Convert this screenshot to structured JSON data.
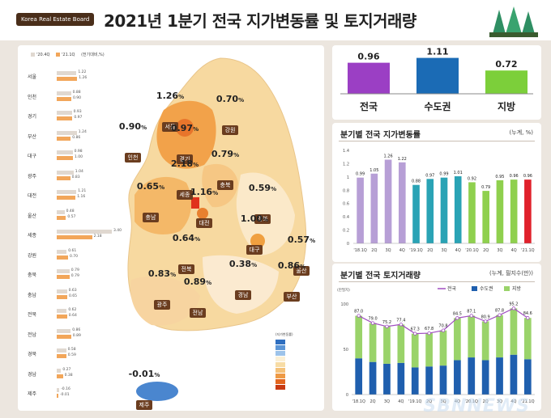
{
  "header": {
    "brand": "Korea Real Estate Board",
    "title": "2021년 1분기 전국 지가변동률 및 토지거래량"
  },
  "map": {
    "legend": [
      "'20.4Q",
      "'21.1Q",
      "(전기대비,%)"
    ],
    "side_bars": [
      {
        "label": "서울",
        "q4": 1.22,
        "q1": 1.26
      },
      {
        "label": "인천",
        "q4": 0.88,
        "q1": 0.9
      },
      {
        "label": "경기",
        "q4": 0.93,
        "q1": 0.97
      },
      {
        "label": "부산",
        "q4": 1.24,
        "q1": 0.86
      },
      {
        "label": "대구",
        "q4": 0.98,
        "q1": 1.0
      },
      {
        "label": "광주",
        "q4": 1.04,
        "q1": 0.83
      },
      {
        "label": "대전",
        "q4": 1.21,
        "q1": 1.16
      },
      {
        "label": "울산",
        "q4": 0.48,
        "q1": 0.57
      },
      {
        "label": "세종",
        "q4": 3.4,
        "q1": 2.18
      },
      {
        "label": "강원",
        "q4": 0.61,
        "q1": 0.7
      },
      {
        "label": "충북",
        "q4": 0.79,
        "q1": 0.79
      },
      {
        "label": "충남",
        "q4": 0.63,
        "q1": 0.65
      },
      {
        "label": "전북",
        "q4": 0.62,
        "q1": 0.64
      },
      {
        "label": "전남",
        "q4": 0.86,
        "q1": 0.89
      },
      {
        "label": "경북",
        "q4": 0.58,
        "q1": 0.59
      },
      {
        "label": "경남",
        "q4": 0.27,
        "q1": 0.38
      },
      {
        "label": "제주",
        "q4": -0.16,
        "q1": -0.01
      }
    ],
    "regions": [
      {
        "name": "서울",
        "value": "1.26",
        "unit": "%"
      },
      {
        "name": "강원",
        "value": "0.70",
        "unit": "%"
      },
      {
        "name": "인천",
        "value": "0.90",
        "unit": "%"
      },
      {
        "name": "경기",
        "value": "0.97",
        "unit": "%"
      },
      {
        "name": "충북",
        "value": "0.79",
        "unit": "%"
      },
      {
        "name": "세종",
        "value": "2.18",
        "unit": "%"
      },
      {
        "name": "충남",
        "value": "0.65",
        "unit": "%"
      },
      {
        "name": "대전",
        "value": "1.16",
        "unit": "%"
      },
      {
        "name": "경북",
        "value": "0.59",
        "unit": "%"
      },
      {
        "name": "대구",
        "value": "1.00",
        "unit": "%"
      },
      {
        "name": "울산",
        "value": "0.57",
        "unit": "%"
      },
      {
        "name": "전북",
        "value": "0.64",
        "unit": "%"
      },
      {
        "name": "경남",
        "value": "0.38",
        "unit": "%"
      },
      {
        "name": "부산",
        "value": "0.86",
        "unit": "%"
      },
      {
        "name": "광주",
        "value": "0.83",
        "unit": "%"
      },
      {
        "name": "전남",
        "value": "0.89",
        "unit": "%"
      },
      {
        "name": "제주",
        "value": "-0.01",
        "unit": "%"
      }
    ],
    "scale_title": "(지가변동률)",
    "scale_colors": [
      "#2f6fc0",
      "#5b95d6",
      "#9dc3ea",
      "#fbf0d6",
      "#f7dca5",
      "#f4c27a",
      "#ee9a45",
      "#e3661f",
      "#c83a12"
    ]
  },
  "summary": {
    "items": [
      {
        "label": "전국",
        "value": 0.96,
        "color": "#9b3fc4"
      },
      {
        "label": "수도권",
        "value": 1.11,
        "color": "#1b6bb5"
      },
      {
        "label": "지방",
        "value": 0.72,
        "color": "#7ccf3a"
      }
    ]
  },
  "chart_data": [
    {
      "type": "bar",
      "title": "분기별 전국 지가변동률",
      "unit": "(누계, %)",
      "categories": [
        "'18.1Q",
        "2Q",
        "3Q",
        "4Q",
        "'19.1Q",
        "2Q",
        "3Q",
        "4Q",
        "'20.1Q",
        "2Q",
        "3Q",
        "4Q",
        "'21.1Q"
      ],
      "values": [
        0.99,
        1.05,
        1.26,
        1.22,
        0.88,
        0.97,
        0.99,
        1.01,
        0.92,
        0.79,
        0.95,
        0.96,
        0.96
      ],
      "colors": [
        "#b79fd6",
        "#b79fd6",
        "#b79fd6",
        "#b79fd6",
        "#2aa3b5",
        "#2aa3b5",
        "#2aa3b5",
        "#2aa3b5",
        "#8fd04e",
        "#8fd04e",
        "#8fd04e",
        "#8fd04e",
        "#e0212b"
      ],
      "yticks": [
        "0",
        "0.2",
        "0.4",
        "0.6",
        "0.8",
        "1",
        "1.2",
        "1.4"
      ],
      "ylim": [
        0,
        1.4
      ]
    },
    {
      "type": "bar",
      "title": "분기별 전국 토지거래량",
      "unit": "(누계, 필지수(만))",
      "ylabel": "(만필지)",
      "legend": [
        "전국",
        "수도권",
        "지방"
      ],
      "categories": [
        "'18.1Q",
        "2Q",
        "3Q",
        "4Q",
        "'19.1Q",
        "2Q",
        "3Q",
        "4Q",
        "'20.1Q",
        "2Q",
        "3Q",
        "4Q",
        "'21.1Q"
      ],
      "series": [
        {
          "name": "전국",
          "values": [
            87.0,
            79.0,
            75.2,
            77.4,
            67.3,
            67.8,
            70.8,
            84.5,
            87.1,
            80.9,
            87.8,
            95.2,
            84.6
          ]
        },
        {
          "name": "수도권",
          "values": [
            40,
            36,
            34,
            35,
            30,
            31,
            32,
            38,
            41,
            38,
            41,
            44,
            39
          ]
        },
        {
          "name": "지방",
          "values": [
            47,
            43,
            41.2,
            42.4,
            37.3,
            36.8,
            38.8,
            46.5,
            46.1,
            42.9,
            46.8,
            51.2,
            45.6
          ]
        }
      ],
      "yticks": [
        "0",
        "50",
        "100"
      ],
      "ylim": [
        0,
        100
      ]
    }
  ],
  "watermark": "SBNNEWS"
}
